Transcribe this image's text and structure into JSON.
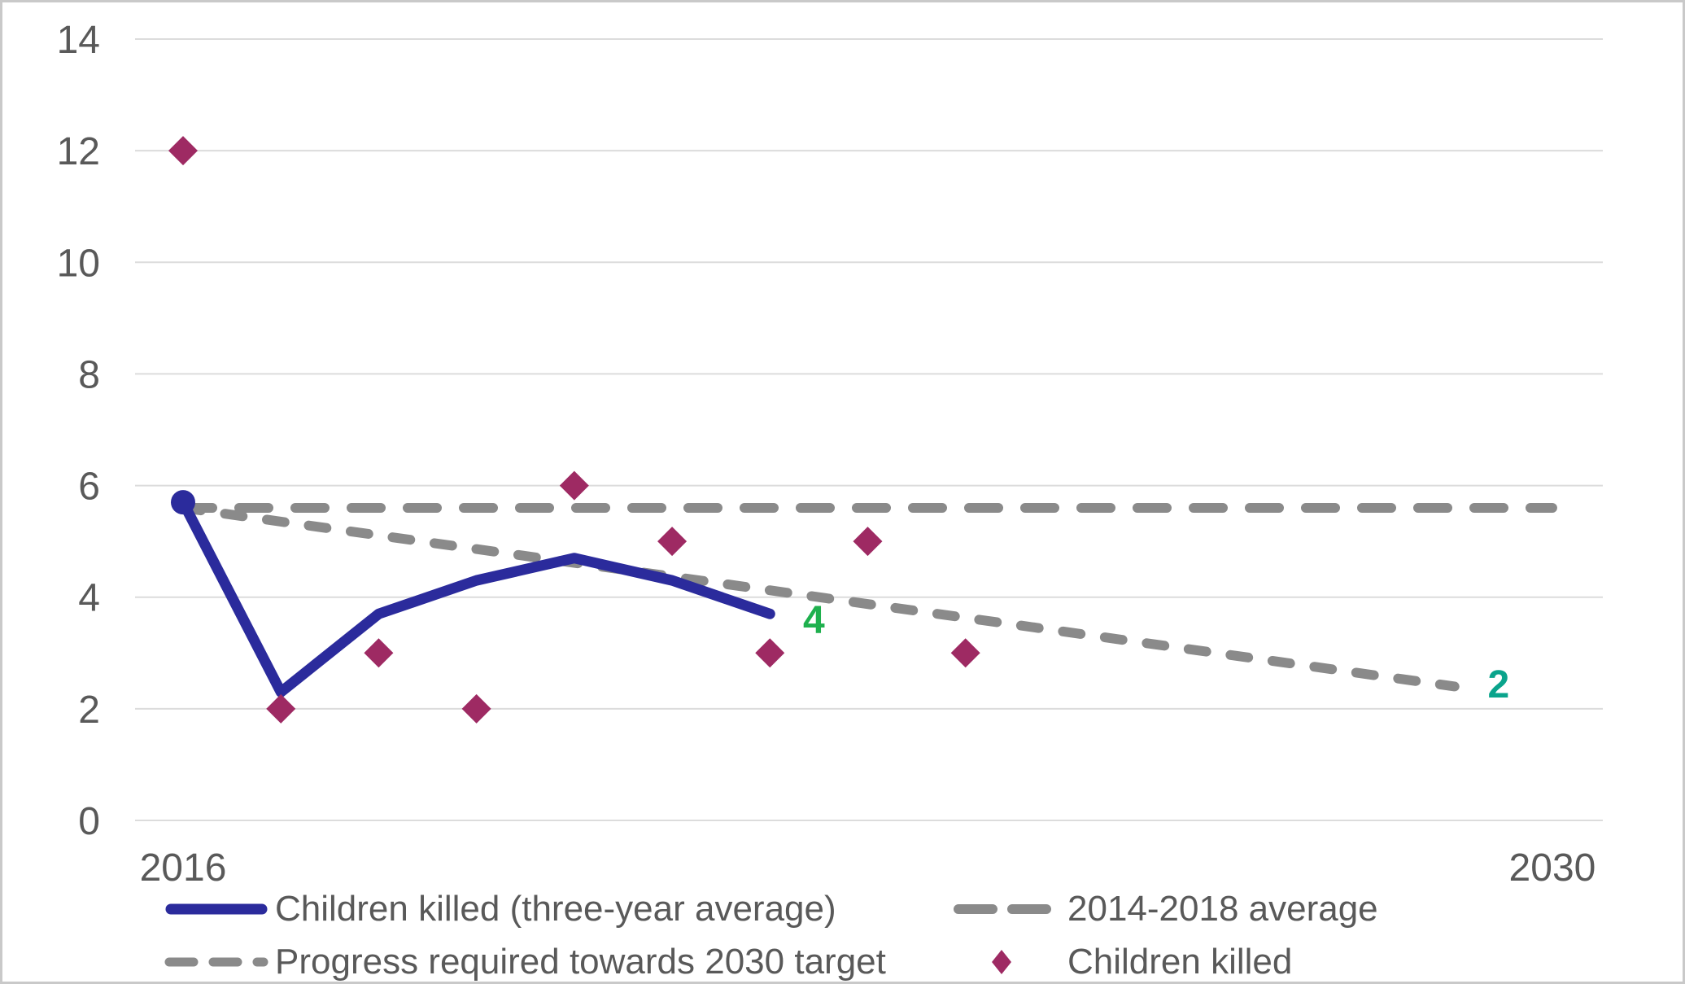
{
  "chart_data": {
    "type": "line",
    "title": "",
    "x_axis": {
      "min": 2016,
      "max": 2030,
      "tick_years": [
        2016,
        2030
      ],
      "tick_labels": [
        "2016",
        "2030"
      ]
    },
    "y_axis": {
      "min": 0,
      "max": 14,
      "ticks": [
        0,
        2,
        4,
        6,
        8,
        10,
        12,
        14
      ]
    },
    "grid": true,
    "legend_position": "bottom",
    "series": [
      {
        "id": "avg_2014_2018",
        "name": "2014-2018 average",
        "type": "dashed_line",
        "color": "#8A8A8A",
        "years": [
          2016,
          2030
        ],
        "values": [
          5.6,
          5.6
        ]
      },
      {
        "id": "progress_required",
        "name": "Progress required towards 2030 target",
        "type": "dashed_line",
        "color": "#8A8A8A",
        "years": [
          2016,
          2029
        ],
        "values": [
          5.6,
          2.4
        ]
      },
      {
        "id": "three_year_avg",
        "name": "Children killed (three-year average)",
        "type": "line",
        "color": "#2B2B9C",
        "start_marker": "circle",
        "years": [
          2016,
          2017,
          2018,
          2019,
          2020,
          2021,
          2022
        ],
        "values": [
          5.7,
          2.3,
          3.7,
          4.3,
          4.7,
          4.3,
          3.7
        ]
      },
      {
        "id": "children_killed",
        "name": "Children killed",
        "type": "scatter",
        "color": "#9E2A63",
        "years": [
          2016,
          2017,
          2018,
          2019,
          2020,
          2021,
          2022,
          2023,
          2024
        ],
        "values": [
          12,
          2,
          3,
          2,
          6,
          5,
          3,
          5,
          3
        ]
      }
    ],
    "annotations": [
      {
        "text": "4",
        "color": "#1FB04E",
        "year": 2022.45,
        "value": 3.6
      },
      {
        "text": "2",
        "color": "#0AA48C",
        "year": 2029.45,
        "value": 2.45
      }
    ],
    "legend": {
      "items": [
        {
          "label": "Children killed (three-year average)",
          "marker": "solid-line",
          "color": "#2B2B9C"
        },
        {
          "label": "Progress required towards 2030 target",
          "marker": "dashed-line",
          "color": "#8A8A8A"
        },
        {
          "label": "2014-2018 average",
          "marker": "dashed-line",
          "color": "#8A8A8A"
        },
        {
          "label": "Children killed",
          "marker": "diamond",
          "color": "#9E2A63"
        }
      ]
    },
    "style": {
      "gridline_color": "#DCDCDC",
      "tick_label_color": "#595959",
      "background": "#FFFFFF",
      "border_color": "#C9C9C9"
    }
  }
}
